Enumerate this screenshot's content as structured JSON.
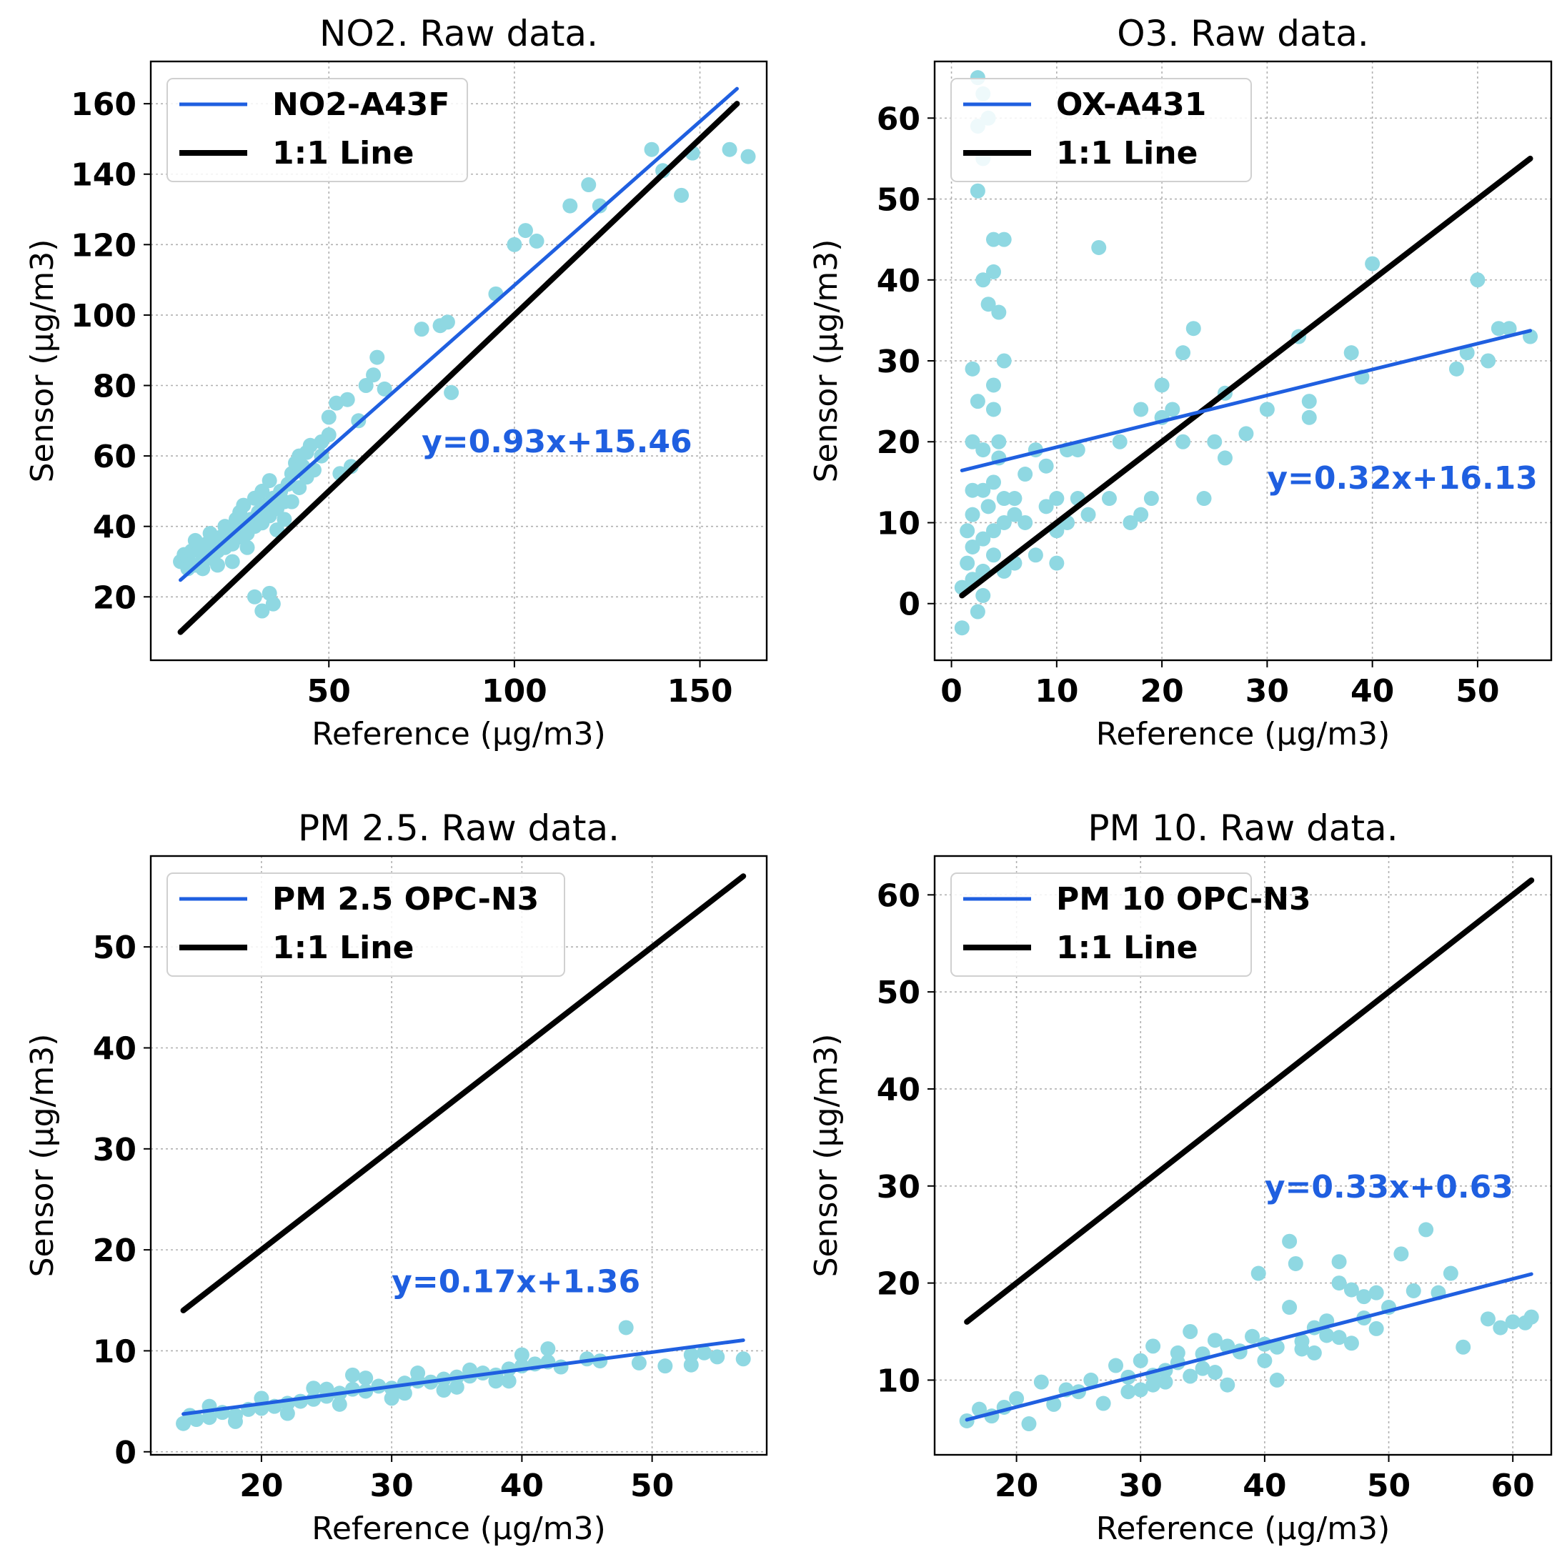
{
  "colors": {
    "points": "#8fd8e2",
    "fit": "#1f5fe0",
    "identity": "#000000",
    "grid": "#b0b0b0"
  },
  "chart_data": [
    {
      "type": "scatter",
      "title": "NO2. Raw data.",
      "xlabel": "Reference (µg/m3)",
      "ylabel": "Sensor (µg/m3)",
      "xlim": [
        2,
        168
      ],
      "ylim": [
        2,
        172
      ],
      "xticks": [
        50,
        100,
        150
      ],
      "yticks": [
        20,
        40,
        60,
        80,
        100,
        120,
        140,
        160
      ],
      "legend": {
        "position": "top-left",
        "entries": [
          "NO2-A43F",
          "1:1 Line"
        ]
      },
      "fit": {
        "slope": 0.93,
        "intercept": 15.46,
        "x_range": [
          10,
          160
        ],
        "label": "y=0.93x+15.46",
        "label_at": [
          75,
          61
        ]
      },
      "identity": {
        "x_range": [
          10,
          160
        ]
      },
      "points": [
        [
          10,
          30
        ],
        [
          11,
          32
        ],
        [
          12,
          31
        ],
        [
          13,
          33
        ],
        [
          14,
          29
        ],
        [
          15,
          34
        ],
        [
          16,
          32
        ],
        [
          17,
          35
        ],
        [
          18,
          31
        ],
        [
          19,
          36
        ],
        [
          20,
          33
        ],
        [
          21,
          37
        ],
        [
          22,
          34
        ],
        [
          23,
          38
        ],
        [
          24,
          35
        ],
        [
          25,
          39
        ],
        [
          26,
          37
        ],
        [
          27,
          41
        ],
        [
          28,
          38
        ],
        [
          29,
          42
        ],
        [
          30,
          40
        ],
        [
          31,
          44
        ],
        [
          32,
          41
        ],
        [
          33,
          46
        ],
        [
          34,
          43
        ],
        [
          35,
          48
        ],
        [
          36,
          45
        ],
        [
          37,
          50
        ],
        [
          38,
          47
        ],
        [
          39,
          52
        ],
        [
          40,
          55
        ],
        [
          41,
          58
        ],
        [
          42,
          60
        ],
        [
          43,
          57
        ],
        [
          44,
          61
        ],
        [
          45,
          63
        ],
        [
          12,
          28
        ],
        [
          14,
          36
        ],
        [
          16,
          28
        ],
        [
          18,
          38
        ],
        [
          20,
          29
        ],
        [
          22,
          40
        ],
        [
          24,
          30
        ],
        [
          26,
          44
        ],
        [
          28,
          34
        ],
        [
          30,
          48
        ],
        [
          32,
          50
        ],
        [
          34,
          53
        ],
        [
          36,
          39
        ],
        [
          38,
          42
        ],
        [
          40,
          47
        ],
        [
          42,
          51
        ],
        [
          44,
          54
        ],
        [
          46,
          56
        ],
        [
          48,
          60
        ],
        [
          30,
          20
        ],
        [
          32,
          16
        ],
        [
          34,
          21
        ],
        [
          35,
          18
        ],
        [
          50,
          71
        ],
        [
          52,
          75
        ],
        [
          55,
          76
        ],
        [
          58,
          70
        ],
        [
          60,
          80
        ],
        [
          62,
          83
        ],
        [
          63,
          88
        ],
        [
          65,
          79
        ],
        [
          48,
          64
        ],
        [
          50,
          66
        ],
        [
          53,
          55
        ],
        [
          56,
          57
        ],
        [
          75,
          96
        ],
        [
          80,
          97
        ],
        [
          82,
          98
        ],
        [
          83,
          78
        ],
        [
          95,
          106
        ],
        [
          100,
          120
        ],
        [
          103,
          124
        ],
        [
          106,
          121
        ],
        [
          115,
          131
        ],
        [
          120,
          137
        ],
        [
          123,
          131
        ],
        [
          137,
          147
        ],
        [
          140,
          141
        ],
        [
          145,
          134
        ],
        [
          148,
          146
        ],
        [
          158,
          147
        ],
        [
          163,
          145
        ],
        [
          25,
          42
        ],
        [
          27,
          46
        ]
      ]
    },
    {
      "type": "scatter",
      "title": "O3. Raw data.",
      "xlabel": "Reference (µg/m3)",
      "ylabel": "Sensor (µg/m3)",
      "xlim": [
        -1.6,
        57
      ],
      "ylim": [
        -7,
        67
      ],
      "xticks": [
        0,
        10,
        20,
        30,
        40,
        50
      ],
      "yticks": [
        0,
        10,
        20,
        30,
        40,
        50,
        60
      ],
      "legend": {
        "position": "top-left",
        "entries": [
          "OX-A431",
          "1:1 Line"
        ]
      },
      "fit": {
        "slope": 0.32,
        "intercept": 16.13,
        "x_range": [
          1,
          55
        ],
        "label": "y=0.32x+16.13",
        "label_at": [
          30,
          14.2
        ]
      },
      "identity": {
        "x_range": [
          1,
          55
        ]
      },
      "points": [
        [
          1,
          -3
        ],
        [
          1,
          2
        ],
        [
          1.5,
          5
        ],
        [
          2,
          7
        ],
        [
          2,
          3
        ],
        [
          2.5,
          -1
        ],
        [
          3,
          1
        ],
        [
          3,
          8
        ],
        [
          3.5,
          12
        ],
        [
          4,
          6
        ],
        [
          4,
          15
        ],
        [
          4.5,
          20
        ],
        [
          5,
          10
        ],
        [
          5,
          4
        ],
        [
          2,
          20
        ],
        [
          2.5,
          25
        ],
        [
          2,
          29
        ],
        [
          3,
          19
        ],
        [
          3.5,
          37
        ],
        [
          3,
          40
        ],
        [
          4,
          41
        ],
        [
          4,
          45
        ],
        [
          5,
          45
        ],
        [
          4.5,
          36
        ],
        [
          2.5,
          51
        ],
        [
          3,
          55
        ],
        [
          2.5,
          59
        ],
        [
          3.5,
          60
        ],
        [
          2.5,
          65
        ],
        [
          3,
          63
        ],
        [
          4,
          27
        ],
        [
          5,
          30
        ],
        [
          4,
          24
        ],
        [
          4.5,
          18
        ],
        [
          3,
          14
        ],
        [
          5,
          13
        ],
        [
          6,
          13
        ],
        [
          7,
          10
        ],
        [
          8,
          6
        ],
        [
          9,
          12
        ],
        [
          9,
          17
        ],
        [
          10,
          13
        ],
        [
          10,
          5
        ],
        [
          11,
          10
        ],
        [
          12,
          13
        ],
        [
          13,
          11
        ],
        [
          14,
          44
        ],
        [
          17,
          10
        ],
        [
          18,
          11
        ],
        [
          19,
          13
        ],
        [
          20,
          23
        ],
        [
          20,
          27
        ],
        [
          21,
          24
        ],
        [
          22,
          20
        ],
        [
          22,
          31
        ],
        [
          23,
          34
        ],
        [
          24,
          13
        ],
        [
          25,
          20
        ],
        [
          26,
          26
        ],
        [
          26,
          18
        ],
        [
          28,
          21
        ],
        [
          30,
          24
        ],
        [
          33,
          33
        ],
        [
          34,
          25
        ],
        [
          34,
          23
        ],
        [
          38,
          31
        ],
        [
          39,
          28
        ],
        [
          40,
          42
        ],
        [
          48,
          29
        ],
        [
          49,
          31
        ],
        [
          50,
          40
        ],
        [
          51,
          30
        ],
        [
          52,
          34
        ],
        [
          53,
          34
        ],
        [
          55,
          33
        ],
        [
          1.5,
          9
        ],
        [
          2,
          11
        ],
        [
          3,
          4
        ],
        [
          4,
          9
        ],
        [
          6,
          5
        ],
        [
          8,
          19
        ],
        [
          10,
          9
        ],
        [
          12,
          19
        ],
        [
          16,
          20
        ],
        [
          15,
          13
        ],
        [
          11,
          19
        ],
        [
          6,
          11
        ],
        [
          7,
          16
        ],
        [
          18,
          24
        ],
        [
          2,
          14
        ]
      ]
    },
    {
      "type": "scatter",
      "title": "PM 2.5. Raw data.",
      "xlabel": "Reference (µg/m3)",
      "ylabel": "Sensor (µg/m3)",
      "xlim": [
        11.5,
        58.8
      ],
      "ylim": [
        -0.3,
        59
      ],
      "xticks": [
        20,
        30,
        40,
        50
      ],
      "yticks": [
        0,
        10,
        20,
        30,
        40,
        50
      ],
      "legend": {
        "position": "top-left",
        "entries": [
          "PM 2.5 OPC-N3",
          "1:1 Line"
        ]
      },
      "fit": {
        "slope": 0.17,
        "intercept": 1.36,
        "x_range": [
          14,
          57
        ],
        "label": "y=0.17x+1.36",
        "label_at": [
          30,
          15.8
        ]
      },
      "identity": {
        "x_range": [
          14,
          57
        ]
      },
      "points": [
        [
          14,
          2.8
        ],
        [
          15,
          3.2
        ],
        [
          16,
          3.4
        ],
        [
          17,
          3.9
        ],
        [
          18,
          3.6
        ],
        [
          19,
          4.2
        ],
        [
          20,
          4.3
        ],
        [
          21,
          4.5
        ],
        [
          22,
          4.8
        ],
        [
          23,
          5
        ],
        [
          24,
          5.2
        ],
        [
          25,
          5.5
        ],
        [
          26,
          5.8
        ],
        [
          27,
          6.2
        ],
        [
          28,
          6
        ],
        [
          29,
          6.5
        ],
        [
          30,
          6.3
        ],
        [
          31,
          6.8
        ],
        [
          32,
          7
        ],
        [
          33,
          6.9
        ],
        [
          34,
          7.2
        ],
        [
          35,
          7.4
        ],
        [
          36,
          7.5
        ],
        [
          37,
          7.8
        ],
        [
          38,
          7.6
        ],
        [
          39,
          8.2
        ],
        [
          40,
          8.5
        ],
        [
          41,
          8.7
        ],
        [
          42,
          8.9
        ],
        [
          14.5,
          3.6
        ],
        [
          16,
          4.5
        ],
        [
          18,
          3
        ],
        [
          20,
          5.3
        ],
        [
          22,
          3.8
        ],
        [
          24,
          6.3
        ],
        [
          26,
          4.7
        ],
        [
          28,
          7.3
        ],
        [
          30,
          5.3
        ],
        [
          32,
          7.8
        ],
        [
          34,
          6.1
        ],
        [
          36,
          8.1
        ],
        [
          38,
          7
        ],
        [
          40,
          9.6
        ],
        [
          42,
          10.2
        ],
        [
          45,
          9.2
        ],
        [
          48,
          12.3
        ],
        [
          49,
          8.8
        ],
        [
          51,
          8.5
        ],
        [
          53,
          8.6
        ],
        [
          54,
          9.8
        ],
        [
          55,
          9.4
        ],
        [
          57,
          9.2
        ],
        [
          53,
          9.6
        ],
        [
          27,
          7.6
        ],
        [
          25,
          6.2
        ],
        [
          31,
          5.8
        ],
        [
          35,
          6.4
        ],
        [
          39,
          7
        ],
        [
          43,
          8.4
        ],
        [
          46,
          9
        ]
      ]
    },
    {
      "type": "scatter",
      "title": "PM 10. Raw data.",
      "xlabel": "Reference (µg/m3)",
      "ylabel": "Sensor (µg/m3)",
      "xlim": [
        13.4,
        63.1
      ],
      "ylim": [
        2.3,
        64
      ],
      "xticks": [
        20,
        30,
        40,
        50,
        60
      ],
      "yticks": [
        10,
        20,
        30,
        40,
        50,
        60
      ],
      "legend": {
        "position": "top-left",
        "entries": [
          "PM 10 OPC-N3",
          "1:1 Line"
        ]
      },
      "fit": {
        "slope": 0.33,
        "intercept": 0.63,
        "x_range": [
          16,
          61.5
        ],
        "label": "y=0.33x+0.63",
        "label_at": [
          40,
          28.8
        ]
      },
      "identity": {
        "x_range": [
          16,
          61.5
        ]
      },
      "points": [
        [
          16,
          5.8
        ],
        [
          17,
          7
        ],
        [
          18,
          6.3
        ],
        [
          19,
          7.2
        ],
        [
          20,
          8.1
        ],
        [
          21,
          5.5
        ],
        [
          22,
          9.8
        ],
        [
          23,
          7.5
        ],
        [
          24,
          9
        ],
        [
          25,
          8.8
        ],
        [
          26,
          10
        ],
        [
          27,
          7.6
        ],
        [
          28,
          11.5
        ],
        [
          29,
          10.3
        ],
        [
          30,
          12
        ],
        [
          31,
          13.5
        ],
        [
          32,
          11
        ],
        [
          33,
          12.8
        ],
        [
          34,
          15
        ],
        [
          35,
          12.7
        ],
        [
          36,
          14.1
        ],
        [
          37,
          13.5
        ],
        [
          38,
          12.9
        ],
        [
          39,
          14.5
        ],
        [
          40,
          13.7
        ],
        [
          41,
          10
        ],
        [
          42,
          17.5
        ],
        [
          43,
          14
        ],
        [
          44,
          15.4
        ],
        [
          45,
          16.1
        ],
        [
          46,
          20
        ],
        [
          47,
          19.3
        ],
        [
          48,
          18.6
        ],
        [
          49,
          19
        ],
        [
          50,
          17.5
        ],
        [
          51,
          23
        ],
        [
          52,
          19.2
        ],
        [
          53,
          25.5
        ],
        [
          54,
          19
        ],
        [
          55,
          21
        ],
        [
          56,
          13.4
        ],
        [
          58,
          16.3
        ],
        [
          59,
          15.4
        ],
        [
          60,
          16
        ],
        [
          61,
          15.9
        ],
        [
          61.5,
          16.5
        ],
        [
          39.5,
          21
        ],
        [
          42,
          24.3
        ],
        [
          42.5,
          22
        ],
        [
          46,
          22.2
        ],
        [
          30,
          9
        ],
        [
          31,
          10.5
        ],
        [
          32,
          9.8
        ],
        [
          33,
          11.8
        ],
        [
          34,
          10.4
        ],
        [
          35,
          11.2
        ],
        [
          36,
          10.8
        ],
        [
          37,
          9.5
        ],
        [
          38,
          13
        ],
        [
          40,
          12
        ],
        [
          41,
          13.4
        ],
        [
          43,
          13.2
        ],
        [
          44,
          12.8
        ],
        [
          45,
          14.6
        ],
        [
          46,
          14.4
        ],
        [
          47,
          13.8
        ],
        [
          48,
          16.4
        ],
        [
          49,
          15.3
        ],
        [
          29,
          8.8
        ],
        [
          31,
          9.5
        ]
      ]
    }
  ]
}
